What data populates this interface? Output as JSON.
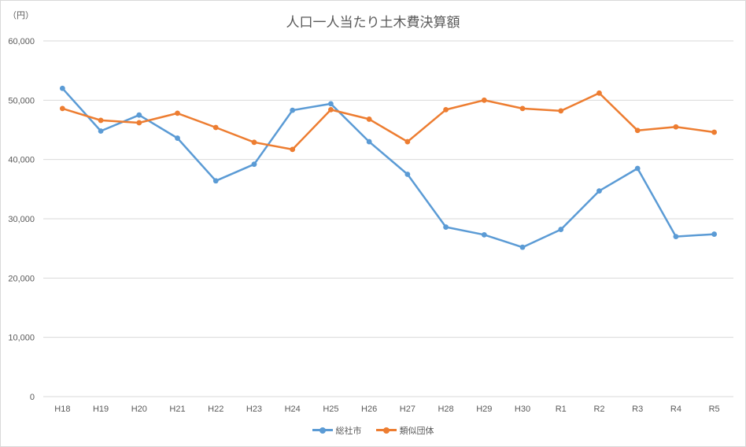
{
  "chart_data": {
    "type": "line",
    "title": "人口一人当たり土木費決算額",
    "unit_label": "（円）",
    "categories": [
      "H18",
      "H19",
      "H20",
      "H21",
      "H22",
      "H23",
      "H24",
      "H25",
      "H26",
      "H27",
      "H28",
      "H29",
      "H30",
      "R1",
      "R2",
      "R3",
      "R4",
      "R5"
    ],
    "ylim": [
      0,
      60000
    ],
    "yticks": [
      0,
      10000,
      20000,
      30000,
      40000,
      50000,
      60000
    ],
    "ytick_labels": [
      "0",
      "10,000",
      "20,000",
      "30,000",
      "40,000",
      "50,000",
      "60,000"
    ],
    "grid": true,
    "legend_position": "bottom",
    "series": [
      {
        "name": "総社市",
        "color": "#5b9bd5",
        "values": [
          52000,
          44800,
          47500,
          43600,
          36400,
          39200,
          48300,
          49400,
          43000,
          37500,
          28600,
          27300,
          25200,
          28200,
          34700,
          38500,
          27000,
          27400
        ]
      },
      {
        "name": "類似団体",
        "color": "#ed7d31",
        "values": [
          48600,
          46600,
          46200,
          47800,
          45400,
          42900,
          41700,
          48400,
          46800,
          43000,
          48400,
          50000,
          48600,
          48200,
          51200,
          44900,
          45500,
          44600
        ]
      }
    ]
  }
}
